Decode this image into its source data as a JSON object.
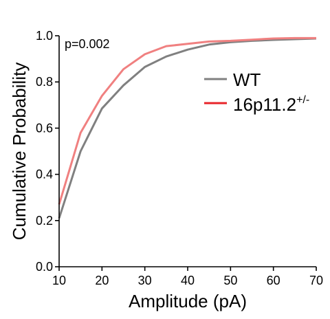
{
  "chart_data": {
    "type": "line",
    "title": "",
    "xlabel": "Amplitude (pA)",
    "ylabel": "Cumulative Probability",
    "xlim": [
      10,
      70
    ],
    "ylim": [
      0,
      1
    ],
    "x_ticks": [
      "10",
      "20",
      "30",
      "40",
      "50",
      "60",
      "70"
    ],
    "y_ticks": [
      "0.0",
      "0.2",
      "0.4",
      "0.6",
      "0.8",
      "1.0"
    ],
    "annotation": "p=0.002",
    "legend": {
      "placement": "right-middle"
    },
    "series": [
      {
        "name": "WT",
        "color": "#808080",
        "x": [
          10,
          15,
          20,
          25,
          30,
          35,
          40,
          45,
          50,
          55,
          60,
          65,
          70
        ],
        "y": [
          0.21,
          0.5,
          0.685,
          0.785,
          0.865,
          0.91,
          0.94,
          0.962,
          0.972,
          0.978,
          0.982,
          0.985,
          0.988
        ]
      },
      {
        "name": "16p11.2",
        "name_superscript": "+/-",
        "color": "#f08080",
        "x": [
          10,
          15,
          20,
          25,
          30,
          35,
          40,
          45,
          50,
          55,
          60,
          65,
          70
        ],
        "y": [
          0.27,
          0.58,
          0.74,
          0.855,
          0.92,
          0.955,
          0.965,
          0.975,
          0.978,
          0.983,
          0.988,
          0.99,
          0.99
        ]
      }
    ]
  },
  "legend_swatch_colors": {
    "WT": "#808080",
    "16p11.2": "#e8242a"
  }
}
